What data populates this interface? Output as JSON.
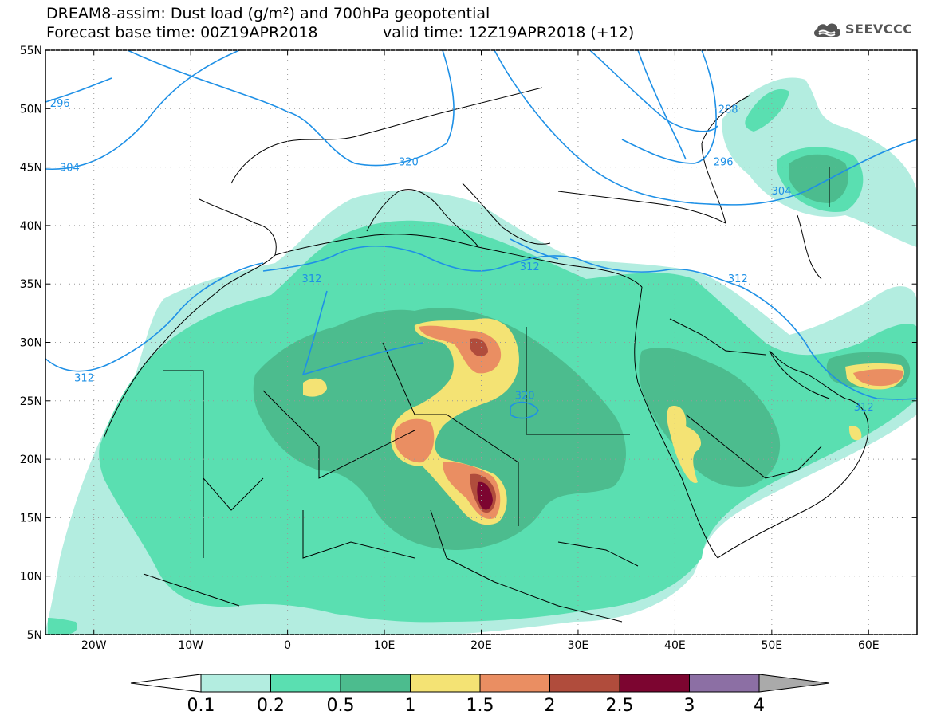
{
  "title": {
    "line1": "DREAM8-assim: Dust load (g/m²) and 700hPa geopotential",
    "line2": "Forecast base time: 00Z19APR2018",
    "valid": "valid time: 12Z19APR2018 (+12)"
  },
  "logo": {
    "text": "SEEVCCC",
    "icon": "cloud-icon"
  },
  "axes": {
    "lat_labels": [
      "55N",
      "50N",
      "45N",
      "40N",
      "35N",
      "30N",
      "25N",
      "20N",
      "15N",
      "10N",
      "5N"
    ],
    "lat_values": [
      55,
      50,
      45,
      40,
      35,
      30,
      25,
      20,
      15,
      10,
      5
    ],
    "lon_labels": [
      "20W",
      "10W",
      "0",
      "10E",
      "20E",
      "30E",
      "40E",
      "50E",
      "60E"
    ],
    "lon_values": [
      -20,
      -10,
      0,
      10,
      20,
      30,
      40,
      50,
      60
    ],
    "lon_range": [
      -25,
      65
    ],
    "lat_range": [
      5,
      55
    ]
  },
  "contours": {
    "color": "#1e90e6",
    "labels": [
      {
        "text": "296",
        "lon": -23.5,
        "lat": 50.5
      },
      {
        "text": "304",
        "lon": -22.5,
        "lat": 45
      },
      {
        "text": "320",
        "lon": 12.5,
        "lat": 45.5
      },
      {
        "text": "288",
        "lon": 45.5,
        "lat": 50
      },
      {
        "text": "296",
        "lon": 45,
        "lat": 45.5
      },
      {
        "text": "304",
        "lon": 51,
        "lat": 43
      },
      {
        "text": "312",
        "lon": 2.5,
        "lat": 35.5
      },
      {
        "text": "312",
        "lon": 25,
        "lat": 36.5
      },
      {
        "text": "312",
        "lon": 46.5,
        "lat": 35.5
      },
      {
        "text": "312",
        "lon": -21,
        "lat": 27
      },
      {
        "text": "320",
        "lon": 24.5,
        "lat": 25.5
      },
      {
        "text": "312",
        "lon": 59.5,
        "lat": 24.5
      }
    ]
  },
  "colorbar": {
    "levels": [
      "0.1",
      "0.2",
      "0.5",
      "1",
      "1.5",
      "2",
      "2.5",
      "3",
      "4"
    ],
    "colors": [
      "#b3ede0",
      "#5adfb1",
      "#4cbc8e",
      "#f4e374",
      "#ea8e62",
      "#b04c3c",
      "#7c0530",
      "#8c6fa4"
    ],
    "under_color": "#ffffff",
    "over_color": "#aaaaaa"
  },
  "dust_colors": {
    "l1": "#b3ede0",
    "l2": "#5adfb1",
    "l3": "#4cbc8e",
    "l4": "#f4e374",
    "l5": "#ea8e62",
    "l6": "#b04c3c",
    "l7": "#7c0530"
  }
}
